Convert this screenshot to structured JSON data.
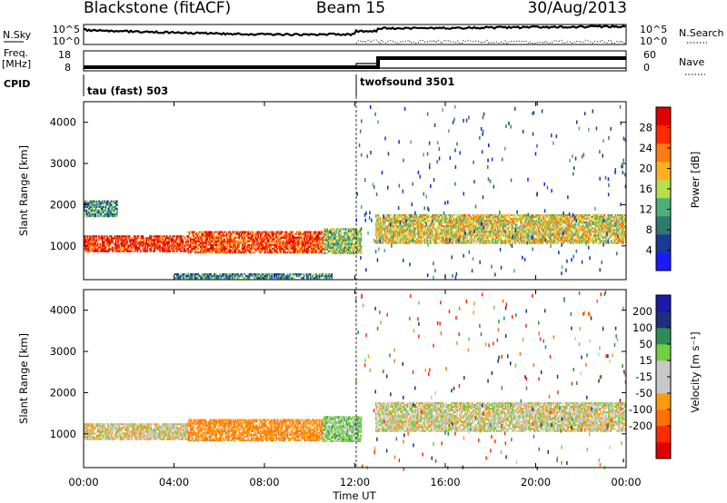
{
  "header": {
    "station": "Blackstone (fitACF)",
    "beam": "Beam 15",
    "date": "30/Aug/2013"
  },
  "aux_panels": {
    "nsky_label": "N.Sky",
    "nsky_tick_top": "10^5",
    "nsky_tick_bottom": "10^0",
    "nsearch_label": "N.Search",
    "nsearch_tick_top": "10^5",
    "nsearch_tick_bottom": "10^0",
    "freq_label_line1": "Freq.",
    "freq_label_line2": "[MHz]",
    "freq_tick_top": "18",
    "freq_tick_bottom": "8",
    "nave_label": "Nave",
    "nave_tick_top": "60",
    "nave_tick_bottom": "0",
    "cpid_label": "CPID",
    "cpid_mode_1": "tau (fast) 503",
    "cpid_mode_2": "twofsound 3501"
  },
  "colors": {
    "power_scale": [
      "#1a1aff",
      "#1a3a9a",
      "#2f7a6e",
      "#4caf7a",
      "#b6e04a",
      "#ffb020",
      "#ff7a10",
      "#ff2a00",
      "#e00000"
    ],
    "velocity_scale": [
      "#1a1aaa",
      "#1f2f80",
      "#2e8b57",
      "#6fcf3f",
      "#c8c8c8",
      "#c8c8c8",
      "#ff9a10",
      "#ff7000",
      "#ff2a00",
      "#e00000"
    ]
  },
  "chart_data": [
    {
      "type": "heatmap",
      "panel": "power",
      "ylabel": "Slant Range [km]",
      "xlabel": "Time UT",
      "x_ticks": [
        "00:00",
        "04:00",
        "08:00",
        "12:00",
        "16:00",
        "20:00",
        "00:00"
      ],
      "x_range_hours": [
        0,
        24
      ],
      "y_ticks": [
        "1000",
        "2000",
        "3000",
        "4000"
      ],
      "y_range_km": [
        180,
        4500
      ],
      "colorbar": {
        "label": "Power [dB]",
        "ticks": [
          "4",
          "8",
          "12",
          "16",
          "20",
          "24",
          "28"
        ],
        "range": [
          0,
          32
        ]
      },
      "echo_regions": [
        {
          "t_start": 0.0,
          "t_end": 4.6,
          "range_start": 850,
          "range_end": 1250,
          "value": 27
        },
        {
          "t_start": 0.0,
          "t_end": 1.5,
          "range_start": 1700,
          "range_end": 2100,
          "value": 10
        },
        {
          "t_start": 4.6,
          "t_end": 10.6,
          "range_start": 820,
          "range_end": 1350,
          "value": 26
        },
        {
          "t_start": 10.6,
          "t_end": 12.3,
          "range_start": 800,
          "range_end": 1400,
          "value": 14
        },
        {
          "t_start": 12.9,
          "t_end": 24.0,
          "range_start": 1050,
          "range_end": 1750,
          "value": 18
        },
        {
          "t_start": 4.0,
          "t_end": 11.0,
          "range_start": 200,
          "range_end": 300,
          "value": 10
        }
      ]
    },
    {
      "type": "heatmap",
      "panel": "velocity",
      "ylabel": "Slant Range [km]",
      "xlabel": "Time UT",
      "x_ticks": [
        "00:00",
        "04:00",
        "08:00",
        "12:00",
        "16:00",
        "20:00",
        "00:00"
      ],
      "x_range_hours": [
        0,
        24
      ],
      "y_ticks": [
        "1000",
        "2000",
        "3000",
        "4000"
      ],
      "y_range_km": [
        180,
        4500
      ],
      "colorbar": {
        "label": "Velocity [m s⁻¹]",
        "ticks": [
          "200",
          "100",
          "50",
          "15",
          "-15",
          "-50",
          "-100",
          "-200"
        ]
      },
      "echo_regions": [
        {
          "t_start": 0.0,
          "t_end": 4.6,
          "range_start": 850,
          "range_end": 1250,
          "value": -5
        },
        {
          "t_start": 4.6,
          "t_end": 10.6,
          "range_start": 820,
          "range_end": 1350,
          "value": -40
        },
        {
          "t_start": 10.6,
          "t_end": 12.3,
          "range_start": 800,
          "range_end": 1400,
          "value": 30
        },
        {
          "t_start": 12.9,
          "t_end": 24.0,
          "range_start": 1050,
          "range_end": 1750,
          "value": 0
        }
      ]
    }
  ]
}
